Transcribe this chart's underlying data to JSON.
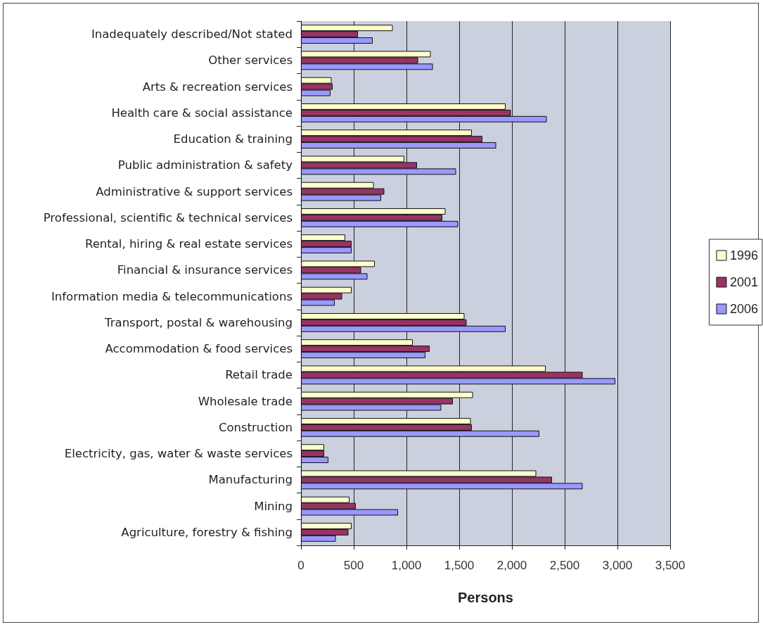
{
  "chart_data": {
    "type": "bar",
    "orientation": "horizontal",
    "xlabel": "Persons",
    "categories": [
      "Inadequately described/Not stated",
      "Other services",
      "Arts & recreation services",
      "Health care & social assistance",
      "Education & training",
      "Public administration & safety",
      "Administrative & support services",
      "Professional, scientific & technical services",
      "Rental, hiring & real estate services",
      "Financial & insurance services",
      "Information media & telecommunications",
      "Transport, postal & warehousing",
      "Accommodation & food services",
      "Retail trade",
      "Wholesale trade",
      "Construction",
      "Electricity, gas, water & waste services",
      "Manufacturing",
      "Mining",
      "Agriculture, forestry & fishing"
    ],
    "series": [
      {
        "name": "1996",
        "color": "#ffffcc",
        "values": [
          870,
          1230,
          290,
          1940,
          1620,
          980,
          690,
          1370,
          420,
          700,
          480,
          1550,
          1060,
          2320,
          1630,
          1610,
          220,
          2230,
          460,
          480
        ]
      },
      {
        "name": "2001",
        "color": "#993366",
        "values": [
          540,
          1110,
          300,
          1990,
          1720,
          1100,
          790,
          1340,
          480,
          570,
          390,
          1570,
          1220,
          2670,
          1440,
          1620,
          220,
          2380,
          520,
          450
        ]
      },
      {
        "name": "2006",
        "color": "#9999ff",
        "values": [
          680,
          1250,
          280,
          2330,
          1850,
          1470,
          760,
          1490,
          480,
          630,
          320,
          1940,
          1180,
          2980,
          1330,
          2260,
          260,
          2670,
          920,
          330
        ]
      }
    ],
    "xlim": [
      0,
      3500
    ],
    "xticks": [
      0,
      500,
      {
        "value": 1000,
        "label": "1,000"
      },
      {
        "value": 1500,
        "label": "1,500"
      },
      {
        "value": 2000,
        "label": "2,000"
      },
      {
        "value": 2500,
        "label": "2,500"
      },
      {
        "value": 3000,
        "label": "3,000"
      },
      {
        "value": 3500,
        "label": "3,500"
      }
    ],
    "grid": "x",
    "legend": "right"
  }
}
